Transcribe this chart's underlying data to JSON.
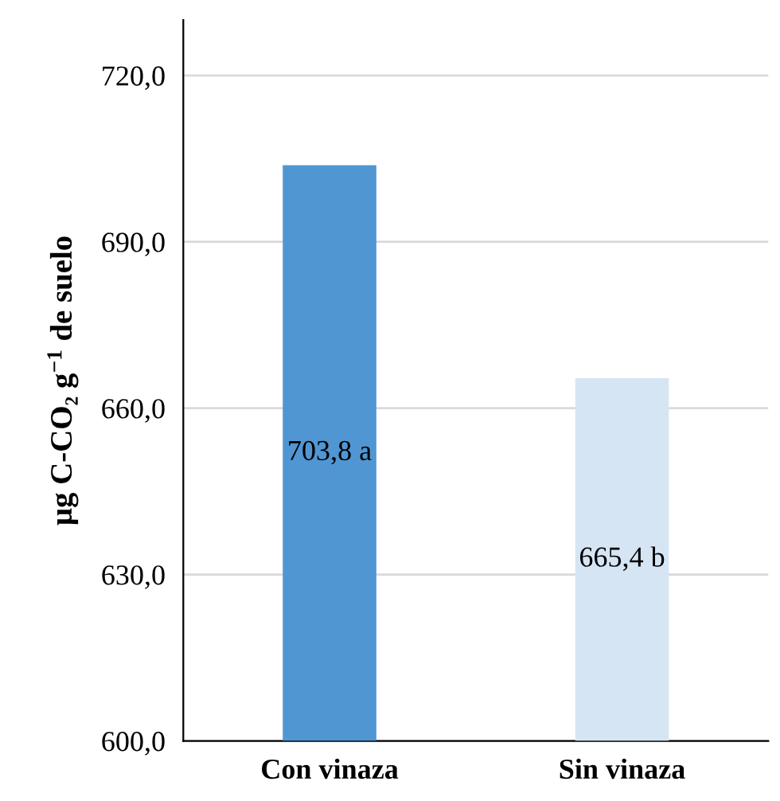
{
  "chart_data": {
    "type": "bar",
    "ylabel": "μg C-CO₂ g$^{−1}$ de suelo",
    "categories": [
      "Con vinaza",
      "Sin vinaza"
    ],
    "values": [
      703.8,
      665.4
    ],
    "colors": [
      "#5096d2",
      "#d5e5f3"
    ],
    "value_labels": [
      "703,8 a",
      "665,4 b"
    ],
    "ylim": [
      600,
      730
    ],
    "yticks": [
      {
        "value": 600,
        "label": "600,0"
      },
      {
        "value": 630,
        "label": "630,0"
      },
      {
        "value": 660,
        "label": "660,0"
      },
      {
        "value": 690,
        "label": "690,0"
      },
      {
        "value": 720,
        "label": "720,0"
      }
    ],
    "grid": "y"
  }
}
